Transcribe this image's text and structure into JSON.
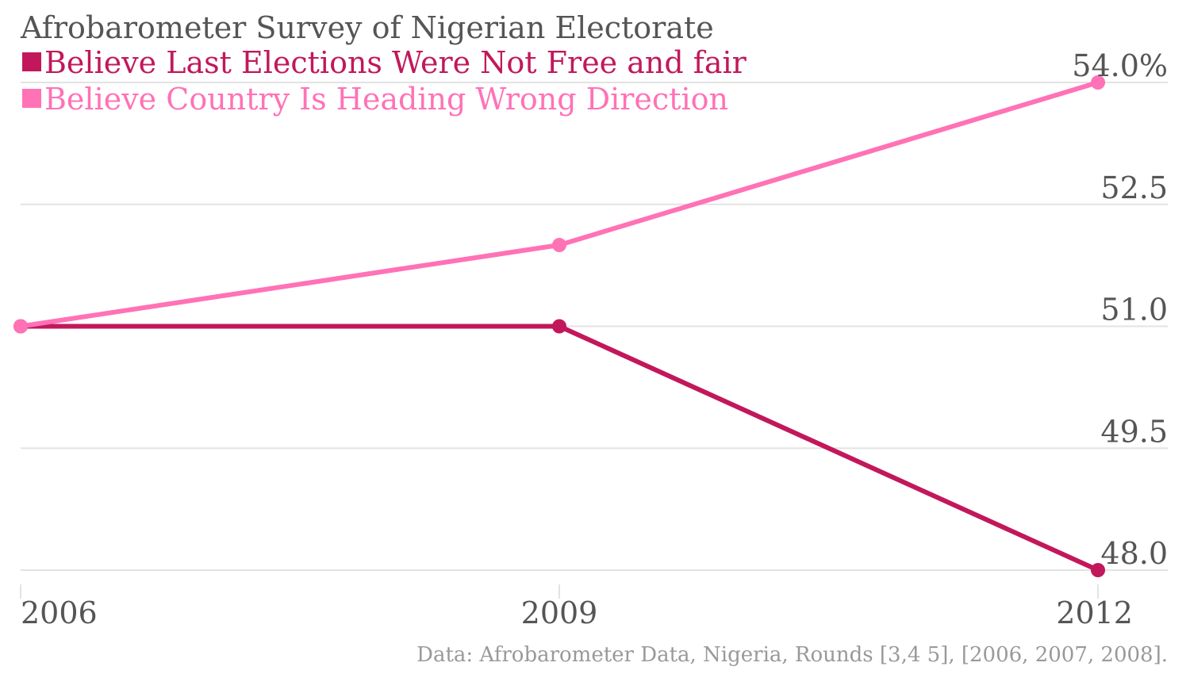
{
  "chart_data": {
    "type": "line",
    "title": "Afrobarometer Survey of Nigerian Electorate",
    "x": [
      "2006",
      "2009",
      "2012"
    ],
    "series": [
      {
        "name": "Believe Last Elections Were Not Free and fair",
        "color": "#c2185b",
        "values": [
          51.0,
          51.0,
          48.0
        ]
      },
      {
        "name": "Believe Country Is Heading Wrong Direction",
        "color": "#ff72b6",
        "values": [
          51.0,
          52.0,
          54.0
        ]
      }
    ],
    "yticks": [
      {
        "value": 54.0,
        "label": "54.0%"
      },
      {
        "value": 52.5,
        "label": "52.5"
      },
      {
        "value": 51.0,
        "label": "51.0"
      },
      {
        "value": 49.5,
        "label": "49.5"
      },
      {
        "value": 48.0,
        "label": "48.0"
      }
    ],
    "ylim": [
      48.0,
      54.0
    ],
    "xlabel": "",
    "ylabel": "",
    "grid": true,
    "legend_position": "top-left",
    "source": "Data: Afrobarometer Data, Nigeria, Rounds [3,4 5], [2006, 2007, 2008]."
  }
}
